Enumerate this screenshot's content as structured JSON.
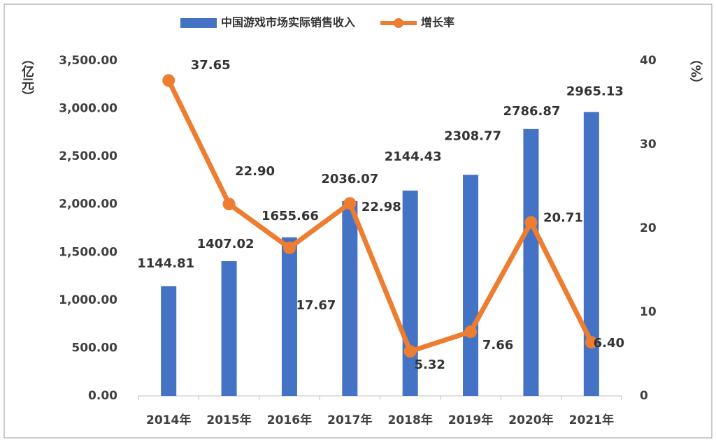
{
  "chart_data": {
    "type": "bar_line",
    "categories": [
      "2014年",
      "2015年",
      "2016年",
      "2017年",
      "2018年",
      "2019年",
      "2020年",
      "2021年"
    ],
    "y_label": "（亿元）",
    "y2_label": "（%）",
    "ylim": [
      0,
      3500
    ],
    "yticks": [
      {
        "value": 0,
        "label": "0.00"
      },
      {
        "value": 500,
        "label": "500.00"
      },
      {
        "value": 1000,
        "label": "1,000.00"
      },
      {
        "value": 1500,
        "label": "1,500.00"
      },
      {
        "value": 2000,
        "label": "2,000.00"
      },
      {
        "value": 2500,
        "label": "2,500.00"
      },
      {
        "value": 3000,
        "label": "3,000.00"
      },
      {
        "value": 3500,
        "label": "3,500.00"
      }
    ],
    "y2lim": [
      0,
      40
    ],
    "y2ticks": [
      0,
      10,
      20,
      30,
      40
    ],
    "series": [
      {
        "name": "中国游戏市场实际销售收入",
        "type": "bar",
        "color": "#4472c4",
        "values": [
          1144.81,
          1407.02,
          1655.66,
          2036.07,
          2144.43,
          2308.77,
          2786.87,
          2965.13
        ]
      },
      {
        "name": "增长率",
        "type": "line",
        "axis": "y2",
        "color": "#ed7d31",
        "values": [
          37.65,
          22.9,
          17.67,
          22.98,
          5.32,
          7.66,
          20.71,
          6.4
        ],
        "value_labels": [
          "37.65",
          "22.90",
          "17.67",
          "22.98",
          "5.32",
          "7.66",
          "20.71",
          "6.40"
        ]
      }
    ]
  }
}
